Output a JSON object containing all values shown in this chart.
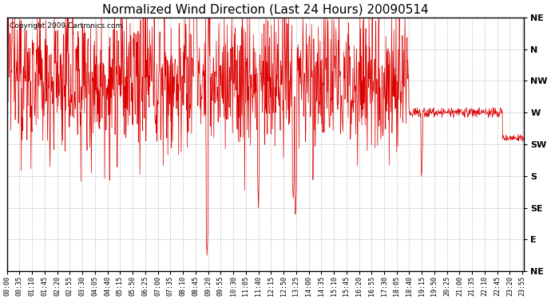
{
  "title": "Normalized Wind Direction (Last 24 Hours) 20090514",
  "copyright": "Copyright 2009 Cartronics.com",
  "ytick_labels": [
    "NE",
    "N",
    "NW",
    "W",
    "SW",
    "S",
    "SE",
    "E",
    "NE"
  ],
  "ytick_values": [
    8,
    7,
    6,
    5,
    4,
    3,
    2,
    1,
    0
  ],
  "ylim": [
    0,
    8
  ],
  "line_color": "#dd0000",
  "bg_color": "#ffffff",
  "plot_bg_color": "#ffffff",
  "grid_color": "#999999",
  "title_fontsize": 11,
  "copyright_fontsize": 6.5,
  "tick_fontsize": 6,
  "ytick_fontsize": 8
}
